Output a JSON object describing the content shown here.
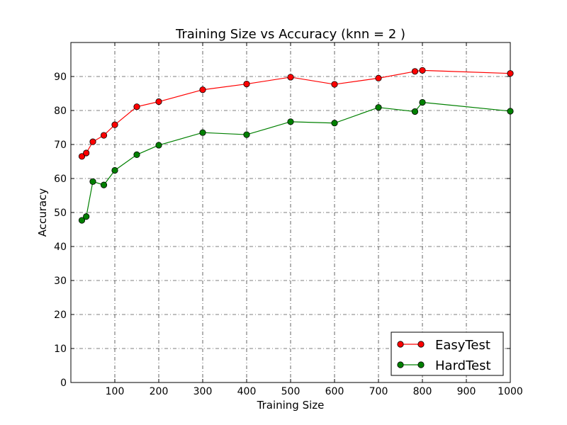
{
  "chart_data": {
    "type": "line",
    "title": "Training Size vs Accuracy (knn = 2 )",
    "xlabel": "Training Size",
    "ylabel": "Accuracy",
    "xlim": [
      0,
      1000
    ],
    "ylim": [
      0,
      100
    ],
    "x_ticks": [
      100,
      200,
      300,
      400,
      500,
      600,
      700,
      800,
      900,
      1000
    ],
    "y_ticks": [
      0,
      10,
      20,
      30,
      40,
      50,
      60,
      70,
      80,
      90
    ],
    "grid": true,
    "legend_position": "bottom-right",
    "series": [
      {
        "name": "EasyTest",
        "color": "#ff0000",
        "x": [
          25,
          35,
          50,
          75,
          100,
          150,
          200,
          300,
          400,
          500,
          600,
          700,
          783,
          800,
          1000
        ],
        "y": [
          66.5,
          67.5,
          70.8,
          72.7,
          75.8,
          81.1,
          82.6,
          86.1,
          87.8,
          89.8,
          87.7,
          89.5,
          91.5,
          91.8,
          90.9
        ]
      },
      {
        "name": "HardTest",
        "color": "#008000",
        "x": [
          25,
          35,
          50,
          75,
          100,
          150,
          200,
          300,
          400,
          500,
          600,
          700,
          783,
          800,
          1000
        ],
        "y": [
          47.7,
          48.8,
          59.1,
          58.1,
          62.4,
          67.0,
          69.8,
          73.5,
          72.9,
          76.7,
          76.3,
          80.9,
          79.7,
          82.4,
          79.8
        ]
      }
    ]
  }
}
